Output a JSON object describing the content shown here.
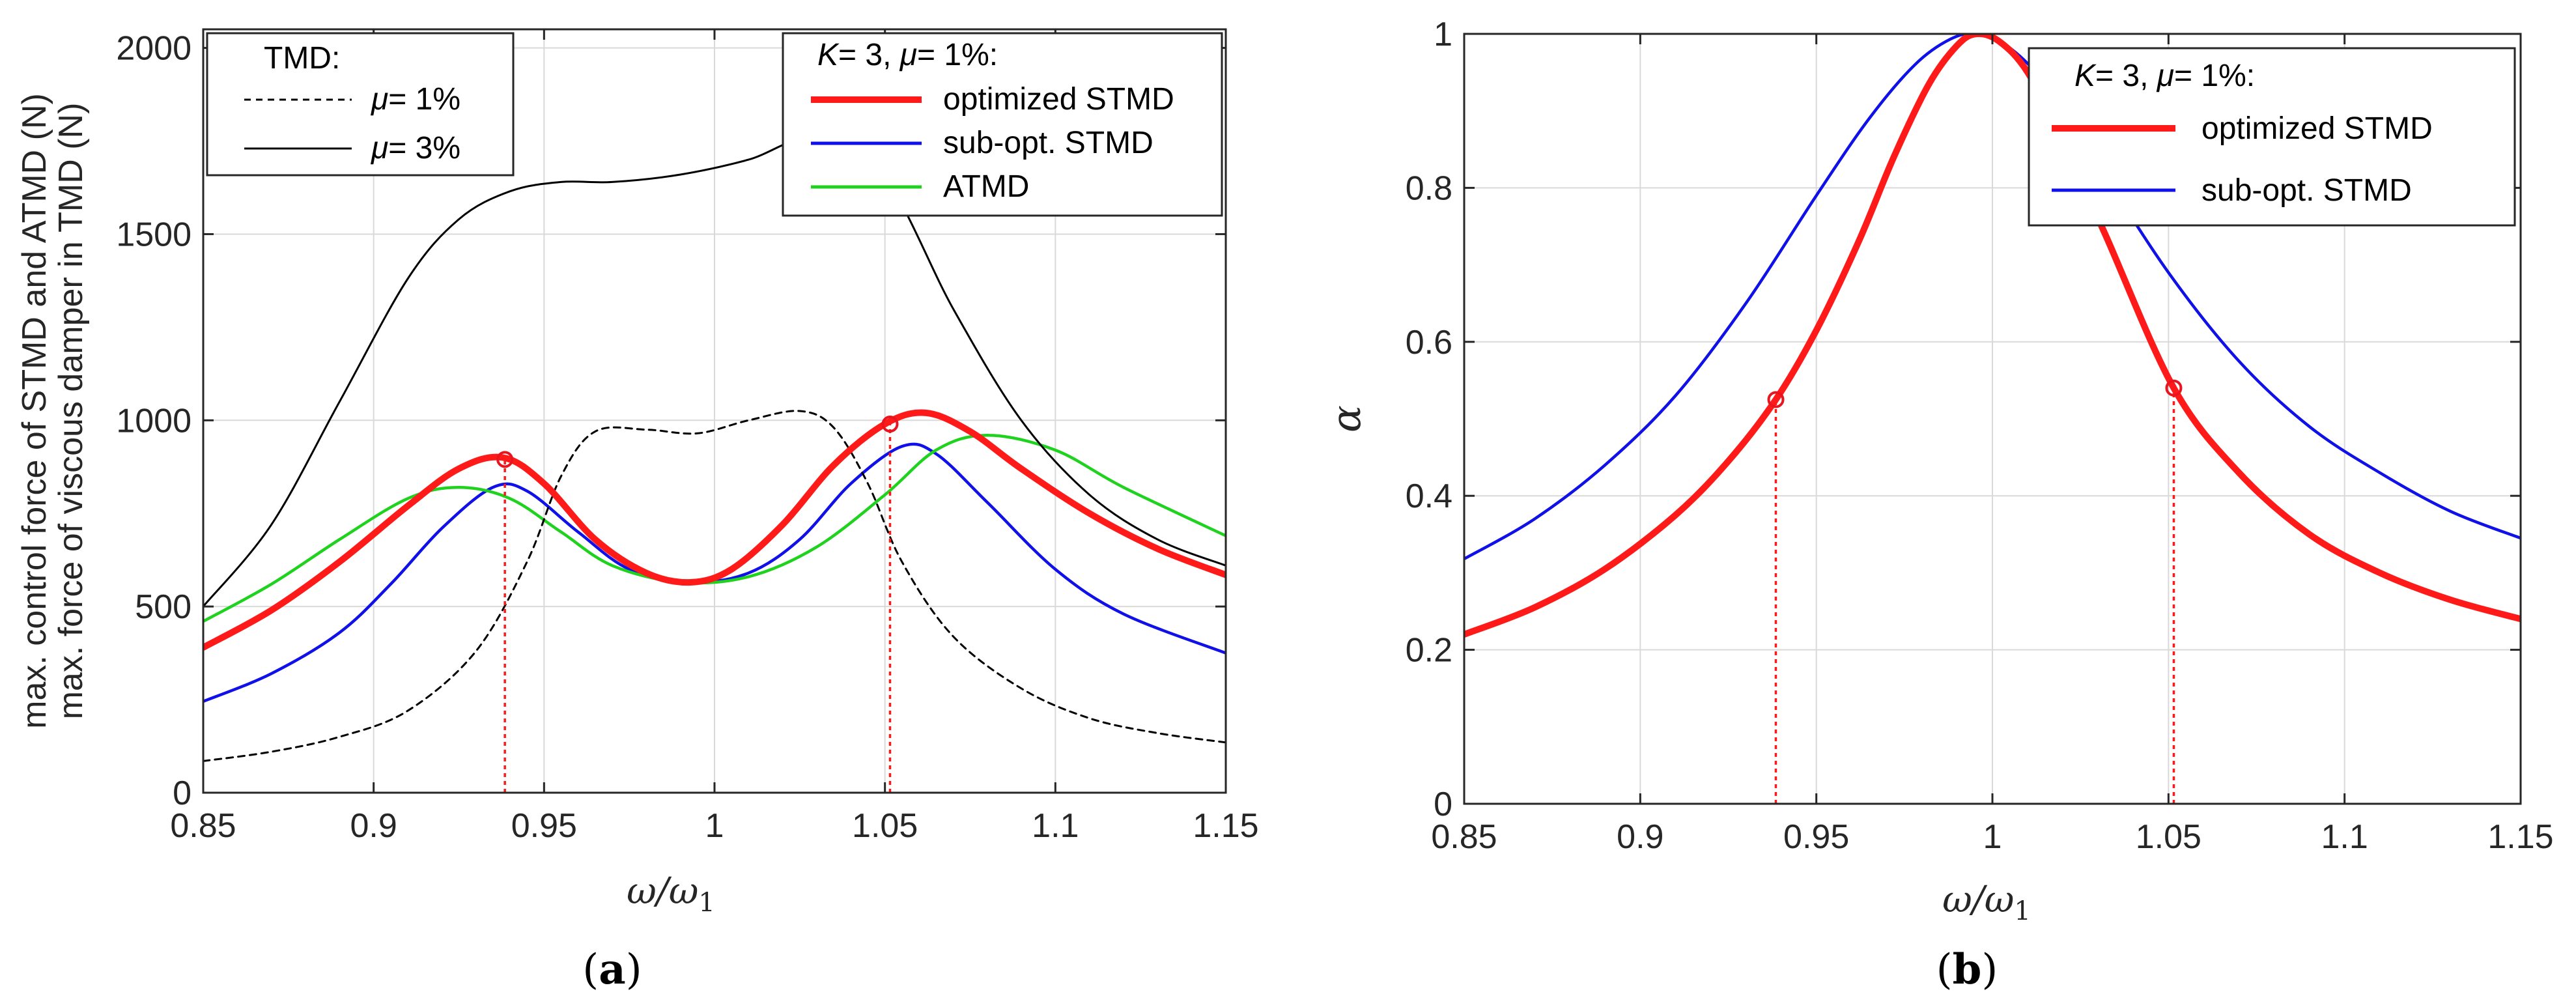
{
  "colors": {
    "red": "#ff1a1a",
    "blue": "#1010e8",
    "green": "#1ed21e",
    "black": "#000000",
    "grid": "#d9d9d9",
    "marker": "#e8141e"
  },
  "panels": [
    {
      "panel_label_open": "(",
      "panel_label_letter": "a",
      "panel_label_close": ")",
      "ylabel_line1": "max. control force of STMD and ATMD (N)",
      "ylabel_line2": "max. force of viscous damper in TMD (N)",
      "xlabel_main": "ω/ω",
      "xlabel_sub": "1",
      "legend_left": {
        "title": "TMD:",
        "entries": [
          {
            "prefix": "μ",
            "text": "= 1%"
          },
          {
            "prefix": "μ",
            "text": "= 3%"
          }
        ]
      },
      "legend_right": {
        "title_k": "K",
        "title_k_rest": "= 3, ",
        "title_mu": "μ",
        "title_mu_rest": "= 1%:",
        "entries": [
          "optimized STMD",
          "sub-opt. STMD",
          "ATMD"
        ]
      }
    },
    {
      "panel_label_open": "(",
      "panel_label_letter": "b",
      "panel_label_close": ")",
      "ylabel": "α",
      "xlabel_main": "ω/ω",
      "xlabel_sub": "1",
      "legend": {
        "title_k": "K",
        "title_k_rest": "= 3, ",
        "title_mu": "μ",
        "title_mu_rest": "= 1%:",
        "entries": [
          "optimized STMD",
          "sub-opt. STMD"
        ]
      }
    }
  ],
  "chart_data": [
    {
      "type": "line",
      "xlabel": "ω/ω1",
      "ylabel": "max. control force of STMD and ATMD (N) / max. force of viscous damper in TMD (N)",
      "xlim": [
        0.85,
        1.15
      ],
      "ylim": [
        0,
        2050
      ],
      "xticks": [
        0.85,
        0.9,
        0.95,
        1,
        1.05,
        1.1,
        1.15
      ],
      "xtick_labels": [
        "0.85",
        "0.9",
        "0.95",
        "1",
        "1.05",
        "1.1",
        "1.15"
      ],
      "yticks": [
        0,
        500,
        1000,
        1500,
        2000
      ],
      "ytick_labels": [
        "0",
        "500",
        "1000",
        "1500",
        "2000"
      ],
      "grid": true,
      "series": [
        {
          "name": "optimized STMD",
          "color": "red",
          "style": "thick",
          "x": [
            0.85,
            0.87,
            0.89,
            0.91,
            0.925,
            0.938,
            0.95,
            0.965,
            0.98,
            0.993,
            1.005,
            1.02,
            1.035,
            1.05,
            1.062,
            1.075,
            1.09,
            1.11,
            1.13,
            1.15
          ],
          "y": [
            390,
            490,
            620,
            770,
            870,
            900,
            830,
            680,
            590,
            565,
            600,
            720,
            880,
            990,
            1020,
            970,
            870,
            750,
            655,
            585
          ]
        },
        {
          "name": "sub-opt. STMD",
          "color": "blue",
          "style": "normal",
          "x": [
            0.85,
            0.87,
            0.89,
            0.905,
            0.92,
            0.935,
            0.945,
            0.96,
            0.975,
            0.993,
            1.01,
            1.025,
            1.04,
            1.055,
            1.065,
            1.08,
            1.1,
            1.12,
            1.15
          ],
          "y": [
            245,
            320,
            430,
            560,
            710,
            820,
            810,
            700,
            600,
            565,
            590,
            680,
            830,
            930,
            910,
            780,
            600,
            480,
            375
          ]
        },
        {
          "name": "ATMD",
          "color": "green",
          "style": "normal",
          "x": [
            0.85,
            0.87,
            0.89,
            0.91,
            0.925,
            0.94,
            0.955,
            0.97,
            0.99,
            1.01,
            1.03,
            1.05,
            1.065,
            1.08,
            1.1,
            1.12,
            1.15
          ],
          "y": [
            460,
            560,
            680,
            790,
            820,
            790,
            700,
            610,
            565,
            580,
            660,
            800,
            920,
            960,
            920,
            820,
            690
          ]
        },
        {
          "name": "μ= 1%",
          "color": "black",
          "style": "dashed",
          "x": [
            0.85,
            0.87,
            0.89,
            0.91,
            0.93,
            0.945,
            0.955,
            0.965,
            0.98,
            0.995,
            1.01,
            1.025,
            1.035,
            1.045,
            1.055,
            1.07,
            1.09,
            1.11,
            1.13,
            1.15
          ],
          "y": [
            85,
            110,
            150,
            220,
            380,
            620,
            850,
            970,
            975,
            965,
            1000,
            1025,
            980,
            830,
            620,
            420,
            280,
            200,
            160,
            135
          ]
        },
        {
          "name": "μ= 3%",
          "color": "black",
          "style": "solid",
          "x": [
            0.85,
            0.87,
            0.89,
            0.91,
            0.925,
            0.94,
            0.955,
            0.97,
            0.99,
            1.01,
            1.03,
            1.05,
            1.07,
            1.09,
            1.11,
            1.13,
            1.15
          ],
          "y": [
            500,
            720,
            1050,
            1380,
            1540,
            1615,
            1640,
            1640,
            1660,
            1700,
            1760,
            1650,
            1300,
            1000,
            800,
            680,
            610
          ]
        }
      ],
      "markers": [
        {
          "x": 0.9385,
          "y": 895,
          "series": "optimized STMD"
        },
        {
          "x": 1.0515,
          "y": 990,
          "series": "optimized STMD"
        }
      ],
      "vlines": [
        0.9385,
        1.0515
      ]
    },
    {
      "type": "line",
      "xlabel": "ω/ω1",
      "ylabel": "α",
      "xlim": [
        0.85,
        1.15
      ],
      "ylim": [
        0,
        1
      ],
      "xticks": [
        0.85,
        0.9,
        0.95,
        1,
        1.05,
        1.1,
        1.15
      ],
      "xtick_labels": [
        "0.85",
        "0.9",
        "0.95",
        "1",
        "1.05",
        "1.1",
        "1.15"
      ],
      "yticks": [
        0,
        0.2,
        0.4,
        0.6,
        0.8,
        1
      ],
      "ytick_labels": [
        "0",
        "0.2",
        "0.4",
        "0.6",
        "0.8",
        "1"
      ],
      "grid": true,
      "series": [
        {
          "name": "optimized STMD",
          "color": "red",
          "style": "thick",
          "x": [
            0.85,
            0.87,
            0.89,
            0.91,
            0.925,
            0.9385,
            0.95,
            0.962,
            0.972,
            0.982,
            0.99,
            0.9955,
            1.002,
            1.01,
            1.02,
            1.032,
            1.0515,
            1.07,
            1.09,
            1.11,
            1.13,
            1.15
          ],
          "y": [
            0.22,
            0.255,
            0.305,
            0.375,
            0.445,
            0.525,
            0.615,
            0.73,
            0.84,
            0.935,
            0.985,
            1.0,
            0.99,
            0.95,
            0.86,
            0.74,
            0.54,
            0.43,
            0.35,
            0.3,
            0.265,
            0.24
          ]
        },
        {
          "name": "sub-opt. STMD",
          "color": "blue",
          "style": "normal",
          "x": [
            0.85,
            0.87,
            0.89,
            0.91,
            0.93,
            0.95,
            0.965,
            0.978,
            0.988,
            0.9955,
            1.004,
            1.015,
            1.03,
            1.05,
            1.07,
            1.09,
            1.11,
            1.13,
            1.15
          ],
          "y": [
            0.318,
            0.37,
            0.44,
            0.53,
            0.65,
            0.79,
            0.89,
            0.96,
            0.993,
            1.0,
            0.985,
            0.935,
            0.83,
            0.69,
            0.575,
            0.49,
            0.43,
            0.38,
            0.345
          ]
        }
      ],
      "markers": [
        {
          "x": 0.9385,
          "y": 0.525,
          "series": "optimized STMD"
        },
        {
          "x": 1.0515,
          "y": 0.54,
          "series": "optimized STMD"
        }
      ],
      "vlines": [
        0.9385,
        1.0515
      ]
    }
  ]
}
